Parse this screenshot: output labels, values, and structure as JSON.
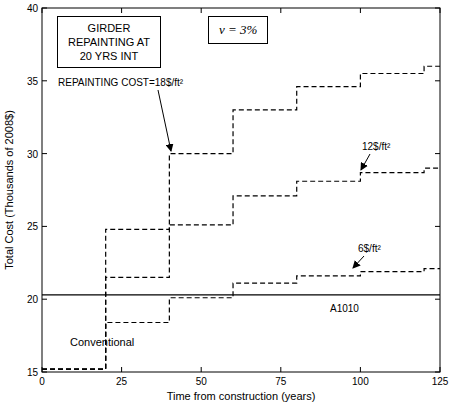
{
  "chart_data": {
    "type": "line",
    "title": "GIRDER REPAINTING AT 20 YRS INT",
    "subtitle": "ν = 3%",
    "x_label": "Time from construction (years)",
    "y_label": "Total Cost (Thousands of 2008$)",
    "xlim": [
      0,
      125
    ],
    "ylim": [
      15,
      40
    ],
    "xticks": [
      0,
      25,
      50,
      75,
      100,
      125
    ],
    "yticks": [
      15,
      20,
      25,
      30,
      35,
      40
    ],
    "grid": false,
    "x": [
      0,
      20,
      20,
      40,
      40,
      60,
      60,
      80,
      80,
      100,
      100,
      120,
      120,
      125
    ],
    "series": [
      {
        "name": "REPAINTING COST=18$/ft²",
        "color": "#000000",
        "line_style": "dashed",
        "values": [
          15.2,
          15.2,
          24.8,
          24.8,
          30.0,
          30.0,
          33.0,
          33.0,
          34.6,
          34.6,
          35.5,
          35.5,
          36.0,
          36.0
        ]
      },
      {
        "name": "12$/ft²",
        "color": "#000000",
        "line_style": "dashed",
        "values": [
          15.2,
          15.2,
          21.5,
          21.5,
          25.1,
          25.1,
          27.1,
          27.1,
          28.1,
          28.1,
          28.7,
          28.7,
          29.0,
          29.0
        ]
      },
      {
        "name": "6$/ft²",
        "color": "#000000",
        "line_style": "dashed",
        "values": [
          15.2,
          15.2,
          18.4,
          18.4,
          20.1,
          20.1,
          21.1,
          21.1,
          21.6,
          21.6,
          21.9,
          21.9,
          22.1,
          22.1
        ]
      },
      {
        "name": "A1010",
        "color": "#000000",
        "line_style": "solid",
        "values": [
          20.3,
          20.3,
          20.3,
          20.3,
          20.3,
          20.3,
          20.3,
          20.3,
          20.3,
          20.3,
          20.3,
          20.3,
          20.3,
          20.3
        ]
      }
    ],
    "annotations": [
      {
        "text": "Conventional"
      }
    ]
  }
}
